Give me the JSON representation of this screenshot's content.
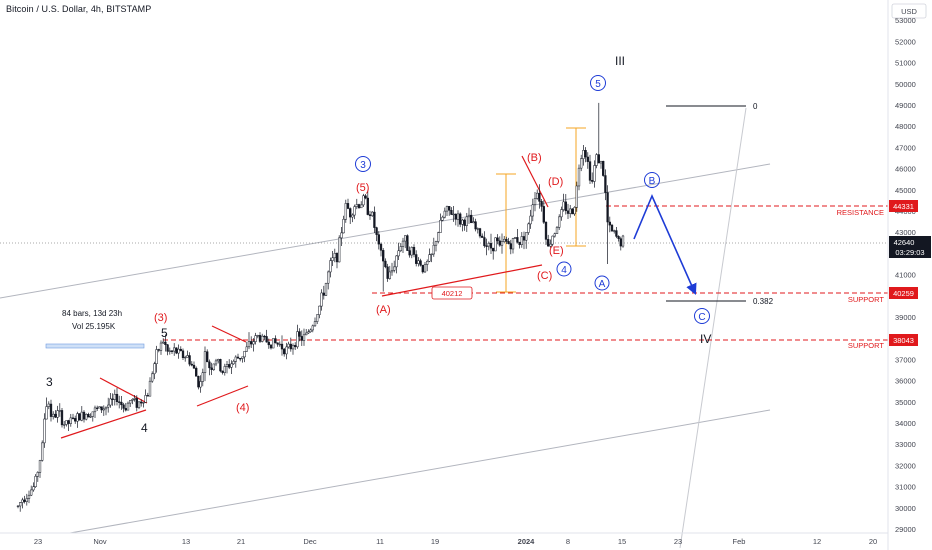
{
  "header": {
    "title": "Bitcoin / U.S. Dollar, 4h, BITSTAMP"
  },
  "axis": {
    "currency": "USD",
    "price_ticks": [
      "29000",
      "30000",
      "31000",
      "32000",
      "33000",
      "34000",
      "35000",
      "36000",
      "37000",
      "38000",
      "39000",
      "40000",
      "41000",
      "42000",
      "43000",
      "44000",
      "45000",
      "46000",
      "47000",
      "48000",
      "49000",
      "50000",
      "51000",
      "52000",
      "53000"
    ],
    "time_ticks": [
      "23",
      "Nov",
      "13",
      "21",
      "Dec",
      "11",
      "19",
      "2024",
      "8",
      "15",
      "23",
      "Feb",
      "12",
      "20"
    ]
  },
  "price_badge": {
    "price": "42640",
    "countdown": "03:29:03"
  },
  "levels": {
    "resistance": {
      "label": "RESISTANCE",
      "price": "44331"
    },
    "support_1": {
      "label": "SUPPORT",
      "price": "40259"
    },
    "support_2": {
      "label": "SUPPORT",
      "price": "38043"
    }
  },
  "fib": {
    "top": "0",
    "retracement": "0.382"
  },
  "box_price": "40212",
  "measure": {
    "bars": "84 bars, 13d 23h",
    "vol": "Vol 25.195K"
  },
  "waves": {
    "w3": "3",
    "w4": "4",
    "w5": "5",
    "wIII": "III",
    "wIV": "IV",
    "r3": "(3)",
    "r4": "(4)",
    "r5": "(5)",
    "rA": "(A)",
    "rB": "(B)",
    "rC": "(C)",
    "rD": "(D)",
    "rE": "(E)",
    "b3": "3",
    "b4": "4",
    "b5": "5",
    "bA": "A",
    "bB": "B",
    "bC": "C"
  },
  "colors": {
    "bull": "#131722",
    "red": "#e0191c",
    "blue": "#1e3cd6",
    "orange": "#f5a623",
    "channel": "#b2b5be"
  },
  "chart_data": {
    "type": "candlestick",
    "title": "Bitcoin / U.S. Dollar, 4h, BITSTAMP",
    "ylim": [
      28800,
      53700
    ],
    "price_path": [
      [
        0,
        29000
      ],
      [
        8,
        29400
      ],
      [
        15,
        29800
      ],
      [
        22,
        30400
      ],
      [
        28,
        30700
      ],
      [
        34,
        31000
      ],
      [
        38,
        31800
      ],
      [
        42,
        32800
      ],
      [
        45,
        34600
      ],
      [
        48,
        35100
      ],
      [
        52,
        34200
      ],
      [
        58,
        34500
      ],
      [
        65,
        33900
      ],
      [
        72,
        34100
      ],
      [
        80,
        34300
      ],
      [
        88,
        34500
      ],
      [
        95,
        34600
      ],
      [
        103,
        34700
      ],
      [
        110,
        34900
      ],
      [
        117,
        35200
      ],
      [
        124,
        34700
      ],
      [
        131,
        35100
      ],
      [
        138,
        34900
      ],
      [
        144,
        35200
      ],
      [
        148,
        35400
      ],
      [
        152,
        36400
      ],
      [
        158,
        37400
      ],
      [
        163,
        37900
      ],
      [
        168,
        37300
      ],
      [
        175,
        37400
      ],
      [
        182,
        37200
      ],
      [
        188,
        37100
      ],
      [
        194,
        36500
      ],
      [
        200,
        35700
      ],
      [
        205,
        37200
      ],
      [
        210,
        36600
      ],
      [
        216,
        37000
      ],
      [
        222,
        36400
      ],
      [
        228,
        36700
      ],
      [
        236,
        37000
      ],
      [
        242,
        37200
      ],
      [
        250,
        37700
      ],
      [
        257,
        38100
      ],
      [
        265,
        37900
      ],
      [
        272,
        37800
      ],
      [
        280,
        37700
      ],
      [
        288,
        37400
      ],
      [
        296,
        38000
      ],
      [
        304,
        38000
      ],
      [
        312,
        38600
      ],
      [
        318,
        39300
      ],
      [
        322,
        39900
      ],
      [
        326,
        40600
      ],
      [
        330,
        41400
      ],
      [
        334,
        41800
      ],
      [
        338,
        42000
      ],
      [
        342,
        43300
      ],
      [
        346,
        44300
      ],
      [
        350,
        43900
      ],
      [
        355,
        44300
      ],
      [
        360,
        44300
      ],
      [
        364,
        44600
      ],
      [
        368,
        44100
      ],
      [
        372,
        43800
      ],
      [
        376,
        42900
      ],
      [
        380,
        42000
      ],
      [
        384,
        41600
      ],
      [
        388,
        40800
      ],
      [
        392,
        41200
      ],
      [
        396,
        41800
      ],
      [
        400,
        42400
      ],
      [
        404,
        42700
      ],
      [
        408,
        42300
      ],
      [
        412,
        42100
      ],
      [
        416,
        41700
      ],
      [
        420,
        41600
      ],
      [
        424,
        41200
      ],
      [
        428,
        41600
      ],
      [
        432,
        41900
      ],
      [
        436,
        42700
      ],
      [
        440,
        43300
      ],
      [
        444,
        43900
      ],
      [
        448,
        44000
      ],
      [
        452,
        43900
      ],
      [
        456,
        43800
      ],
      [
        460,
        43500
      ],
      [
        464,
        43500
      ],
      [
        468,
        43600
      ],
      [
        472,
        43400
      ],
      [
        476,
        43100
      ],
      [
        480,
        42900
      ],
      [
        484,
        42700
      ],
      [
        488,
        42300
      ],
      [
        492,
        42300
      ],
      [
        496,
        42700
      ],
      [
        500,
        42200
      ],
      [
        504,
        42600
      ],
      [
        508,
        42500
      ],
      [
        512,
        42400
      ],
      [
        516,
        42800
      ],
      [
        520,
        42500
      ],
      [
        524,
        42900
      ],
      [
        528,
        43100
      ],
      [
        532,
        44300
      ],
      [
        536,
        45000
      ],
      [
        540,
        44600
      ],
      [
        544,
        43600
      ],
      [
        548,
        42200
      ],
      [
        552,
        42800
      ],
      [
        556,
        43200
      ],
      [
        560,
        43700
      ],
      [
        564,
        44300
      ],
      [
        568,
        44000
      ],
      [
        572,
        43900
      ],
      [
        576,
        44700
      ],
      [
        580,
        46600
      ],
      [
        584,
        47100
      ],
      [
        588,
        46200
      ],
      [
        592,
        45300
      ],
      [
        596,
        46600
      ],
      [
        600,
        46400
      ],
      [
        604,
        45600
      ],
      [
        608,
        43200
      ],
      [
        612,
        43000
      ],
      [
        616,
        42800
      ],
      [
        620,
        42500
      ],
      [
        624,
        42700
      ]
    ]
  }
}
